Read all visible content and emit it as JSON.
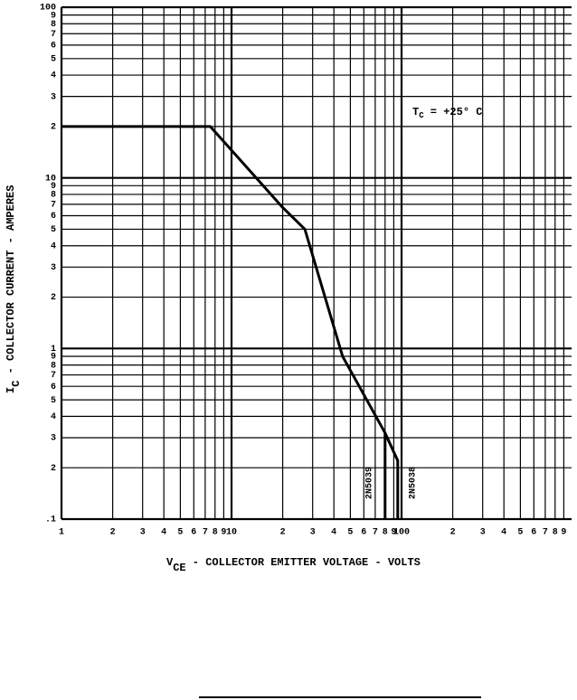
{
  "chart_data": {
    "type": "line",
    "annotation": {
      "main": "T",
      "sub": "C",
      "rest": " = +25° C"
    },
    "x_label": {
      "main": "V",
      "sub": "CE",
      "rest": " - COLLECTOR EMITTER VOLTAGE - VOLTS"
    },
    "y_label": {
      "main": "I",
      "sub": "C",
      "rest": " - COLLECTOR CURRENT - AMPERES"
    },
    "log_x": true,
    "log_y": true,
    "grid": true,
    "color": "#000000",
    "xlim": [
      1,
      1000
    ],
    "ylim": [
      0.1,
      100
    ],
    "xticks": [
      1,
      2,
      3,
      4,
      5,
      6,
      7,
      8,
      9,
      10,
      {
        "value": 20,
        "label": "2"
      },
      {
        "value": 30,
        "label": "3"
      },
      {
        "value": 40,
        "label": "4"
      },
      {
        "value": 50,
        "label": "5"
      },
      {
        "value": 60,
        "label": "6"
      },
      {
        "value": 70,
        "label": "7"
      },
      {
        "value": 80,
        "label": "8"
      },
      {
        "value": 90,
        "label": "9"
      },
      100,
      {
        "value": 200,
        "label": "2"
      },
      {
        "value": 300,
        "label": "3"
      },
      {
        "value": 400,
        "label": "4"
      },
      {
        "value": 500,
        "label": "5"
      },
      {
        "value": 600,
        "label": "6"
      },
      {
        "value": 700,
        "label": "7"
      },
      {
        "value": 800,
        "label": "8"
      },
      {
        "value": 900,
        "label": "9"
      }
    ],
    "yticks": [
      100,
      {
        "value": 90,
        "label": "9"
      },
      {
        "value": 80,
        "label": "8"
      },
      {
        "value": 70,
        "label": "7"
      },
      {
        "value": 60,
        "label": "6"
      },
      {
        "value": 50,
        "label": "5"
      },
      {
        "value": 40,
        "label": "4"
      },
      {
        "value": 30,
        "label": "3"
      },
      {
        "value": 20,
        "label": "2"
      },
      10,
      9,
      8,
      7,
      6,
      5,
      4,
      3,
      2,
      1,
      {
        "value": 0.9,
        "label": "9"
      },
      {
        "value": 0.8,
        "label": "8"
      },
      {
        "value": 0.7,
        "label": "7"
      },
      {
        "value": 0.6,
        "label": "6"
      },
      {
        "value": 0.5,
        "label": "5"
      },
      {
        "value": 0.4,
        "label": "4"
      },
      {
        "value": 0.3,
        "label": "3"
      },
      {
        "value": 0.2,
        "label": "2"
      },
      {
        "value": 0.1,
        "label": ".1"
      }
    ],
    "series": [
      {
        "name": "2N5038",
        "x": [
          1,
          7.5,
          20,
          27,
          45,
          80,
          95,
          95
        ],
        "values": [
          20,
          20,
          6.7,
          5,
          0.9,
          0.32,
          0.22,
          0.1
        ]
      },
      {
        "name": "2N5039",
        "x": [
          80,
          80
        ],
        "values": [
          0.32,
          0.1
        ]
      }
    ]
  }
}
